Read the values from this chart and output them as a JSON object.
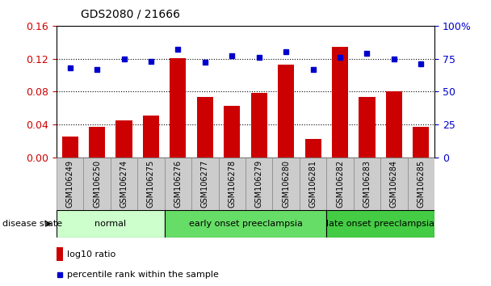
{
  "title": "GDS2080 / 21666",
  "samples": [
    "GSM106249",
    "GSM106250",
    "GSM106274",
    "GSM106275",
    "GSM106276",
    "GSM106277",
    "GSM106278",
    "GSM106279",
    "GSM106280",
    "GSM106281",
    "GSM106282",
    "GSM106283",
    "GSM106284",
    "GSM106285"
  ],
  "log10_ratio": [
    0.025,
    0.037,
    0.045,
    0.051,
    0.121,
    0.073,
    0.063,
    0.078,
    0.113,
    0.022,
    0.134,
    0.073,
    0.08,
    0.037
  ],
  "percentile_rank": [
    68,
    67,
    75,
    73,
    82,
    72,
    77,
    76,
    80,
    67,
    76,
    79,
    75,
    71
  ],
  "bar_color": "#cc0000",
  "dot_color": "#0000cc",
  "ylim_left": [
    0,
    0.16
  ],
  "ylim_right": [
    0,
    100
  ],
  "yticks_left": [
    0,
    0.04,
    0.08,
    0.12,
    0.16
  ],
  "yticks_right": [
    0,
    25,
    50,
    75,
    100
  ],
  "ytick_labels_right": [
    "0",
    "25",
    "50",
    "75",
    "100%"
  ],
  "disease_groups": [
    {
      "label": "normal",
      "start": 0,
      "end": 3,
      "color": "#ccffcc"
    },
    {
      "label": "early onset preeclampsia",
      "start": 4,
      "end": 9,
      "color": "#66dd66"
    },
    {
      "label": "late onset preeclampsia",
      "start": 10,
      "end": 13,
      "color": "#44cc44"
    }
  ],
  "disease_state_label": "disease state",
  "legend_bar_label": "log10 ratio",
  "legend_dot_label": "percentile rank within the sample",
  "tick_label_color_left": "#cc0000",
  "tick_label_color_right": "#0000cc",
  "xlabel_bg": "#cccccc",
  "xlabel_ec": "#999999"
}
